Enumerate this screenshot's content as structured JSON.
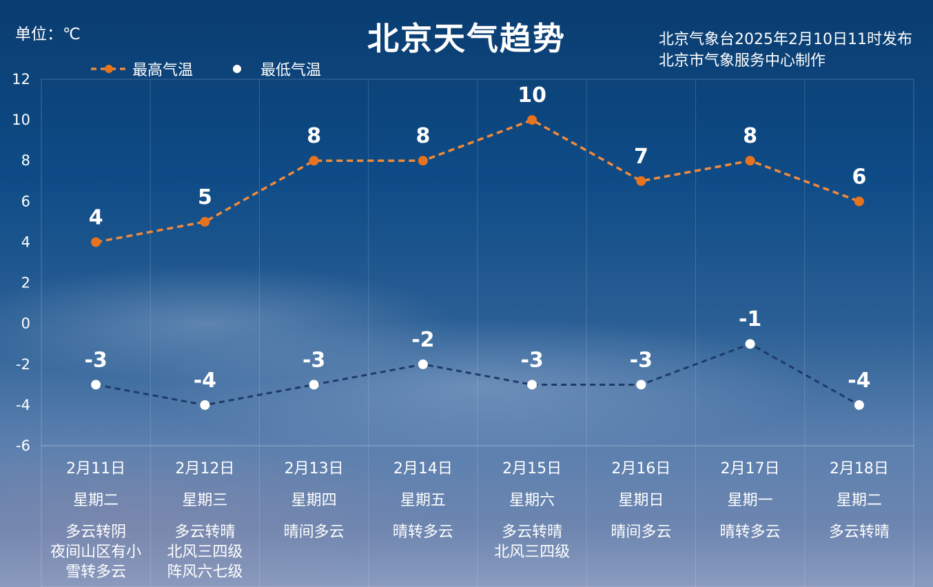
{
  "header": {
    "unit": "单位：℃",
    "title": "北京天气趋势",
    "source_line1": "北京气象台2025年2月10日11时发布",
    "source_line2": "北京市气象服务中心制作"
  },
  "legend": {
    "high_label": "最高气温",
    "low_label": "最低气温"
  },
  "colors": {
    "high": "#f08a3c",
    "low": "#1e3a66",
    "low_marker": "#ffffff"
  },
  "chart_data": {
    "type": "line",
    "title": "北京天气趋势",
    "ylim": [
      -6,
      12
    ],
    "yticks": [
      12,
      10,
      8,
      6,
      4,
      2,
      0,
      -2,
      -4,
      -6
    ],
    "categories": [
      "2月11日",
      "2月12日",
      "2月13日",
      "2月14日",
      "2月15日",
      "2月16日",
      "2月17日",
      "2月18日"
    ],
    "weekdays": [
      "星期二",
      "星期三",
      "星期四",
      "星期五",
      "星期六",
      "星期日",
      "星期一",
      "星期二"
    ],
    "conditions": [
      [
        "多云转阴",
        "夜间山区有小",
        "雪转多云"
      ],
      [
        "多云转晴",
        "北风三四级",
        "阵风六七级"
      ],
      [
        "晴间多云"
      ],
      [
        "晴转多云"
      ],
      [
        "多云转晴",
        "北风三四级"
      ],
      [
        "晴间多云"
      ],
      [
        "晴转多云"
      ],
      [
        "多云转晴"
      ]
    ],
    "series": [
      {
        "name": "最高气温",
        "values": [
          4,
          5,
          8,
          8,
          10,
          7,
          8,
          6
        ]
      },
      {
        "name": "最低气温",
        "values": [
          -3,
          -4,
          -3,
          -2,
          -3,
          -3,
          -1,
          -4
        ]
      }
    ],
    "grid": true
  }
}
